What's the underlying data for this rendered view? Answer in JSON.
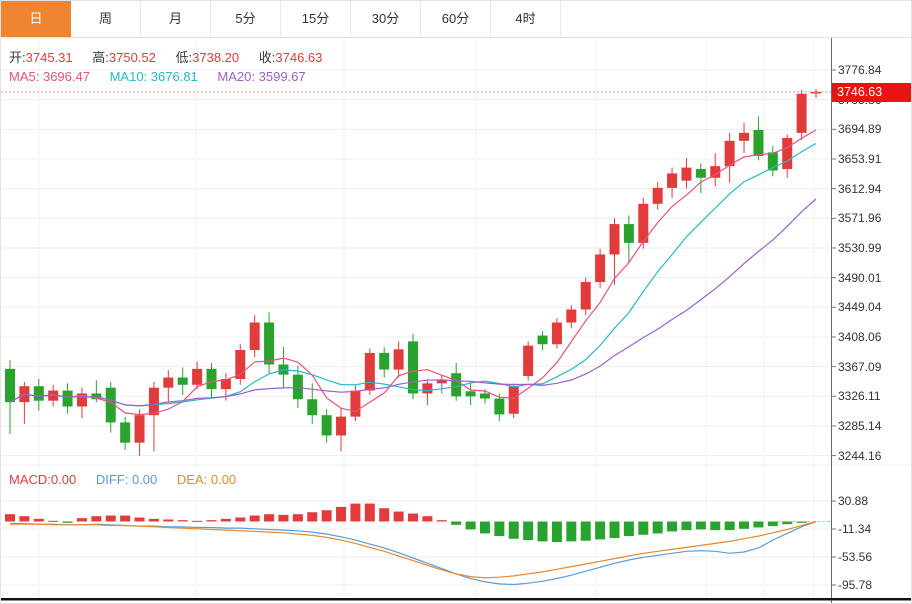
{
  "tabs": {
    "items": [
      {
        "name": "tab-day",
        "label": "日",
        "active": true
      },
      {
        "name": "tab-week",
        "label": "周",
        "active": false
      },
      {
        "name": "tab-month",
        "label": "月",
        "active": false
      },
      {
        "name": "tab-5min",
        "label": "5分",
        "active": false
      },
      {
        "name": "tab-15min",
        "label": "15分",
        "active": false
      },
      {
        "name": "tab-30min",
        "label": "30分",
        "active": false
      },
      {
        "name": "tab-60min",
        "label": "60分",
        "active": false
      },
      {
        "name": "tab-4hour",
        "label": "4时",
        "active": false
      }
    ]
  },
  "info_bar": {
    "open_label": "开:",
    "open_value": "3745.31",
    "high_label": "高:",
    "high_value": "3750.52",
    "low_label": "低:",
    "low_value": "3738.20",
    "close_label": "收:",
    "close_value": "3746.63",
    "ma5_label": "MA5:",
    "ma5_value": "3696.47",
    "ma10_label": "MA10:",
    "ma10_value": "3676.81",
    "ma20_label": "MA20:",
    "ma20_value": "3599.67"
  },
  "price_axis": {
    "labels": [
      "3776.84",
      "3735.86",
      "3694.89",
      "3653.91",
      "3612.94",
      "3571.96",
      "3530.99",
      "3490.01",
      "3449.04",
      "3408.06",
      "3367.09",
      "3326.11",
      "3285.14",
      "3244.16"
    ],
    "current_price": "3746.63"
  },
  "macd_bar": {
    "macd_label": "MACD:",
    "macd_value": "0.00",
    "diff_label": "DIFF:",
    "diff_value": "0.00",
    "dea_label": "DEA:",
    "dea_value": "0.00",
    "axis_labels": [
      "30.88",
      "-11.34",
      "-53.56",
      "-95.78"
    ]
  },
  "colors": {
    "tab_active_bg": "#ef8432",
    "up": "#e23b3b",
    "down": "#2aa32e",
    "ma5": "#e8517e",
    "ma10": "#25b8c8",
    "ma20": "#9f5fc5",
    "diff_line": "#5b9bd5",
    "dea_line": "#e8882f",
    "price_badge_bg": "#e81313",
    "dotted_price_line": "#ef8f8f",
    "grid": "#ededed",
    "axis_line": "#666666",
    "bottom_bar": "#111111",
    "macd_zero_dash": "#7fd8de"
  },
  "chart_data": {
    "type": "candlestick",
    "title": "Daily candlestick chart with MA5/MA10/MA20 overlays and MACD sub-chart",
    "price_axis_range": [
      3244.16,
      3776.84
    ],
    "price_axis_ticks": [
      3776.84,
      3735.86,
      3694.89,
      3653.91,
      3612.94,
      3571.96,
      3530.99,
      3490.01,
      3449.04,
      3408.06,
      3367.09,
      3326.11,
      3285.14,
      3244.16
    ],
    "current_price": 3746.63,
    "last_bar": {
      "open": 3745.31,
      "high": 3750.52,
      "low": 3738.2,
      "close": 3746.63
    },
    "moving_averages": {
      "ma5": 3696.47,
      "ma10": 3676.81,
      "ma20": 3599.67
    },
    "candles_ohlc": [
      [
        3364,
        3376,
        3274,
        3318
      ],
      [
        3318,
        3346,
        3288,
        3340
      ],
      [
        3340,
        3350,
        3306,
        3320
      ],
      [
        3320,
        3342,
        3312,
        3334
      ],
      [
        3334,
        3344,
        3302,
        3312
      ],
      [
        3312,
        3338,
        3296,
        3330
      ],
      [
        3330,
        3348,
        3318,
        3322
      ],
      [
        3338,
        3346,
        3276,
        3290
      ],
      [
        3290,
        3298,
        3252,
        3262
      ],
      [
        3262,
        3308,
        3244,
        3300
      ],
      [
        3300,
        3346,
        3250,
        3338
      ],
      [
        3338,
        3362,
        3318,
        3352
      ],
      [
        3352,
        3366,
        3328,
        3342
      ],
      [
        3342,
        3374,
        3336,
        3364
      ],
      [
        3364,
        3372,
        3324,
        3336
      ],
      [
        3336,
        3358,
        3320,
        3350
      ],
      [
        3350,
        3398,
        3342,
        3390
      ],
      [
        3390,
        3438,
        3380,
        3428
      ],
      [
        3428,
        3442,
        3358,
        3370
      ],
      [
        3370,
        3394,
        3338,
        3356
      ],
      [
        3356,
        3368,
        3310,
        3322
      ],
      [
        3322,
        3344,
        3288,
        3300
      ],
      [
        3300,
        3308,
        3262,
        3272
      ],
      [
        3272,
        3310,
        3250,
        3298
      ],
      [
        3298,
        3342,
        3292,
        3334
      ],
      [
        3334,
        3392,
        3328,
        3386
      ],
      [
        3386,
        3394,
        3352,
        3363
      ],
      [
        3363,
        3402,
        3352,
        3391
      ],
      [
        3402,
        3412,
        3322,
        3330
      ],
      [
        3330,
        3350,
        3314,
        3344
      ],
      [
        3344,
        3355,
        3330,
        3348
      ],
      [
        3358,
        3372,
        3320,
        3326
      ],
      [
        3333,
        3344,
        3314,
        3326
      ],
      [
        3330,
        3336,
        3316,
        3323
      ],
      [
        3323,
        3330,
        3292,
        3301
      ],
      [
        3302,
        3344,
        3296,
        3340
      ],
      [
        3354,
        3402,
        3348,
        3396
      ],
      [
        3410,
        3416,
        3390,
        3398
      ],
      [
        3398,
        3434,
        3392,
        3428
      ],
      [
        3428,
        3452,
        3420,
        3446
      ],
      [
        3446,
        3490,
        3438,
        3484
      ],
      [
        3484,
        3530,
        3476,
        3522
      ],
      [
        3522,
        3572,
        3480,
        3564
      ],
      [
        3564,
        3576,
        3510,
        3538
      ],
      [
        3538,
        3600,
        3530,
        3592
      ],
      [
        3592,
        3622,
        3584,
        3614
      ],
      [
        3614,
        3642,
        3600,
        3634
      ],
      [
        3624,
        3655,
        3613,
        3642
      ],
      [
        3640,
        3648,
        3607,
        3628
      ],
      [
        3628,
        3662,
        3616,
        3644
      ],
      [
        3644,
        3690,
        3621,
        3679
      ],
      [
        3679,
        3704,
        3662,
        3690
      ],
      [
        3694,
        3713,
        3652,
        3658
      ],
      [
        3663,
        3672,
        3630,
        3638
      ],
      [
        3640,
        3688,
        3628,
        3683
      ],
      [
        3690,
        3749,
        3680,
        3744
      ],
      [
        3745.31,
        3750.52,
        3738.2,
        3746.63
      ]
    ],
    "macd": {
      "axis_range": [
        -95.78,
        30.88
      ],
      "axis_ticks": [
        30.88,
        -11.34,
        -53.56,
        -95.78
      ],
      "current": {
        "macd": 0.0,
        "diff": 0.0,
        "dea": 0.0
      },
      "histogram": [
        11,
        8,
        4,
        1,
        -2,
        5,
        8,
        9,
        9,
        6,
        4,
        3,
        2,
        1,
        2,
        4,
        6,
        9,
        11,
        10,
        11,
        14,
        17,
        22,
        27,
        27,
        20,
        15,
        12,
        8,
        2,
        -5,
        -12,
        -18,
        -22,
        -26,
        -28,
        -30,
        -31,
        -30,
        -29,
        -27,
        -25,
        -22,
        -20,
        -18,
        -15,
        -13,
        -12,
        -13,
        -13,
        -11,
        -9,
        -7,
        -4,
        -2,
        0
      ],
      "diff": [
        -3,
        -3,
        -4,
        -4,
        -5,
        -5,
        -4,
        -5,
        -6,
        -7,
        -7,
        -8,
        -8,
        -9,
        -9,
        -10,
        -10,
        -11,
        -12,
        -13,
        -14,
        -16,
        -19,
        -23,
        -28,
        -34,
        -40,
        -47,
        -55,
        -63,
        -71,
        -79,
        -86,
        -91,
        -94,
        -95,
        -93,
        -90,
        -86,
        -81,
        -75,
        -69,
        -63,
        -58,
        -54,
        -51,
        -48,
        -45,
        -44,
        -45,
        -48,
        -46,
        -40,
        -28,
        -18,
        -8,
        0
      ],
      "dea": [
        -4,
        -4,
        -4,
        -5,
        -5,
        -5,
        -5,
        -6,
        -6,
        -7,
        -8,
        -9,
        -10,
        -11,
        -12,
        -13,
        -14,
        -15,
        -16,
        -17,
        -19,
        -21,
        -24,
        -28,
        -33,
        -39,
        -45,
        -52,
        -59,
        -66,
        -73,
        -79,
        -83,
        -85,
        -84,
        -82,
        -79,
        -76,
        -72,
        -68,
        -64,
        -60,
        -56,
        -52,
        -48,
        -45,
        -42,
        -39,
        -36,
        -33,
        -30,
        -26,
        -22,
        -17,
        -12,
        -6,
        0
      ]
    }
  }
}
